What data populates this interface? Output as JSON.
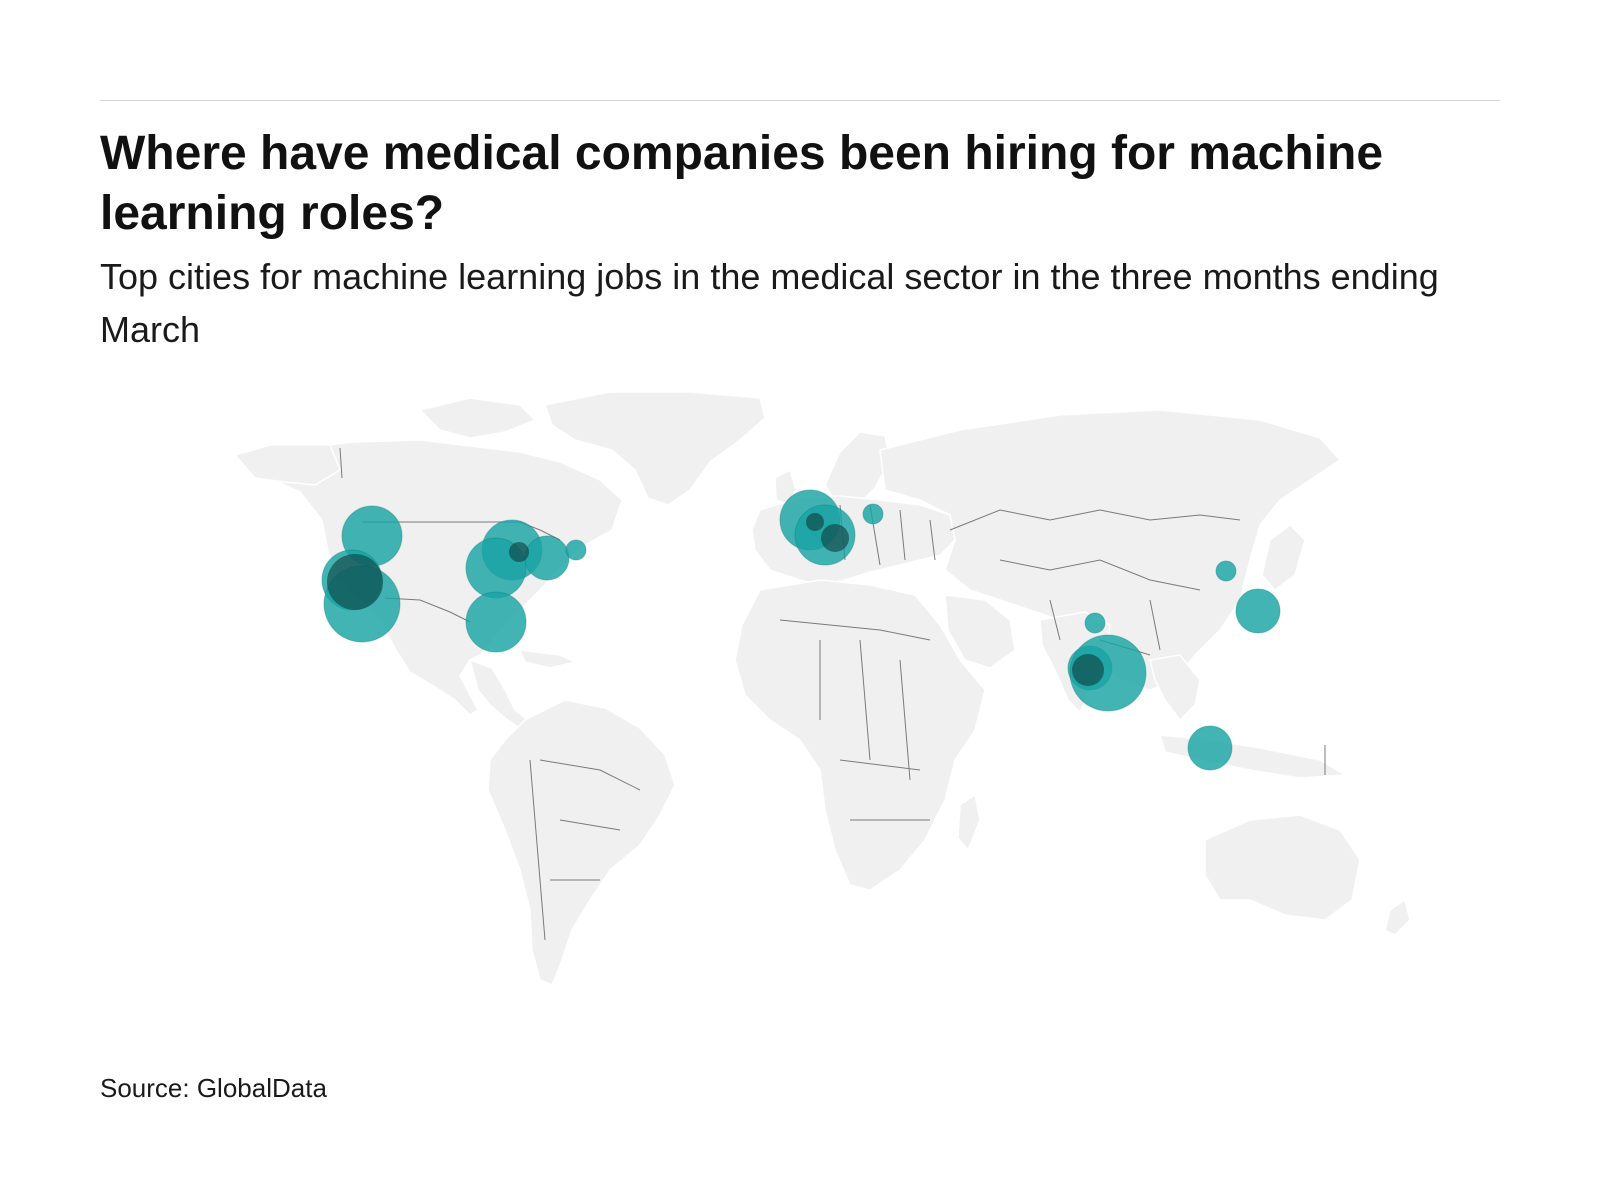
{
  "header": {
    "title": "Where have medical companies been hiring for machine learning roles?",
    "subtitle": "Top cities for machine learning jobs in the medical sector in the three months ending March"
  },
  "footer": {
    "source": "Source: GlobalData"
  },
  "colors": {
    "bubble_fill": "#1aa3a3",
    "bubble_overlap_dark": "#0f3c3c",
    "land": "#f0f0f0",
    "border": "#7a7a7a"
  },
  "map": {
    "projection": "world (robinson-like)",
    "markers": [
      {
        "region": "US west coast north",
        "size": "large"
      },
      {
        "region": "US west coast central",
        "size": "large"
      },
      {
        "region": "US west coast south",
        "size": "extra-large"
      },
      {
        "region": "US northeast",
        "size": "large"
      },
      {
        "region": "US east",
        "size": "large"
      },
      {
        "region": "US east coast",
        "size": "medium"
      },
      {
        "region": "Canada east",
        "size": "small"
      },
      {
        "region": "US southeast",
        "size": "large"
      },
      {
        "region": "Western Europe",
        "size": "large"
      },
      {
        "region": "Central Europe",
        "size": "large"
      },
      {
        "region": "Eastern Europe",
        "size": "small"
      },
      {
        "region": "India north",
        "size": "small"
      },
      {
        "region": "India west",
        "size": "medium"
      },
      {
        "region": "India south",
        "size": "extra-large"
      },
      {
        "region": "China east",
        "size": "small"
      },
      {
        "region": "China southeast",
        "size": "medium"
      },
      {
        "region": "Southeast Asia",
        "size": "medium"
      }
    ]
  }
}
